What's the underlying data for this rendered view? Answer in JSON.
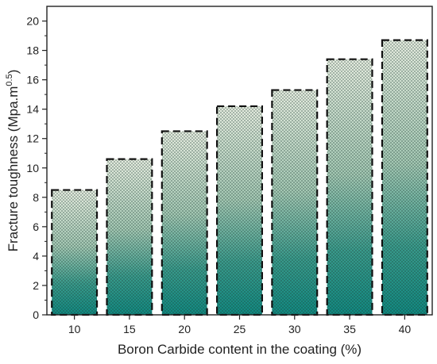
{
  "chart_data": {
    "type": "bar",
    "categories": [
      "10",
      "15",
      "20",
      "25",
      "30",
      "35",
      "40"
    ],
    "values": [
      8.5,
      10.6,
      12.5,
      14.2,
      15.3,
      17.4,
      18.7
    ],
    "xlabel": "Boron Carbide content in the coating (%)",
    "ylabel_main": "Fracture toughness (Mpa.m",
    "ylabel_sup": "0.5",
    "ylabel_end": ")",
    "ylim": [
      0,
      21
    ],
    "yticks": [
      0,
      2,
      4,
      6,
      8,
      10,
      12,
      14,
      16,
      18,
      20
    ],
    "grid": false,
    "bar_style": {
      "fill_top": "#eef3e6",
      "fill_bottom": "#0f8c84",
      "hatch": "crosshatch",
      "edge": "dashed",
      "edge_color": "#111111"
    }
  }
}
